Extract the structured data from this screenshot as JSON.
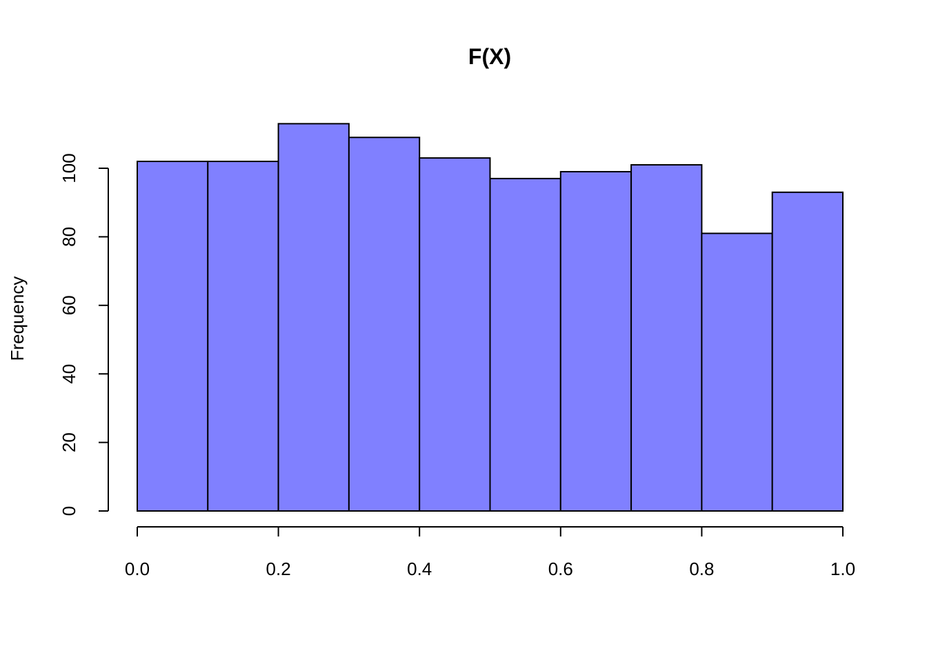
{
  "chart_data": {
    "type": "bar",
    "title": "F(X)",
    "xlabel": "",
    "ylabel": "Frequency",
    "bins": [
      {
        "start": 0.0,
        "end": 0.1,
        "value": 102
      },
      {
        "start": 0.1,
        "end": 0.2,
        "value": 102
      },
      {
        "start": 0.2,
        "end": 0.3,
        "value": 113
      },
      {
        "start": 0.3,
        "end": 0.4,
        "value": 109
      },
      {
        "start": 0.4,
        "end": 0.5,
        "value": 103
      },
      {
        "start": 0.5,
        "end": 0.6,
        "value": 97
      },
      {
        "start": 0.6,
        "end": 0.7,
        "value": 99
      },
      {
        "start": 0.7,
        "end": 0.8,
        "value": 101
      },
      {
        "start": 0.8,
        "end": 0.9,
        "value": 81
      },
      {
        "start": 0.9,
        "end": 1.0,
        "value": 93
      }
    ],
    "xlim": [
      0,
      1
    ],
    "ylim": [
      0,
      113
    ],
    "x_ticks": [
      "0.0",
      "0.2",
      "0.4",
      "0.6",
      "0.8",
      "1.0"
    ],
    "y_ticks": [
      "0",
      "20",
      "40",
      "60",
      "80",
      "100"
    ],
    "bar_color": "#8080ff",
    "edge_color": "#000000",
    "grid": false
  }
}
